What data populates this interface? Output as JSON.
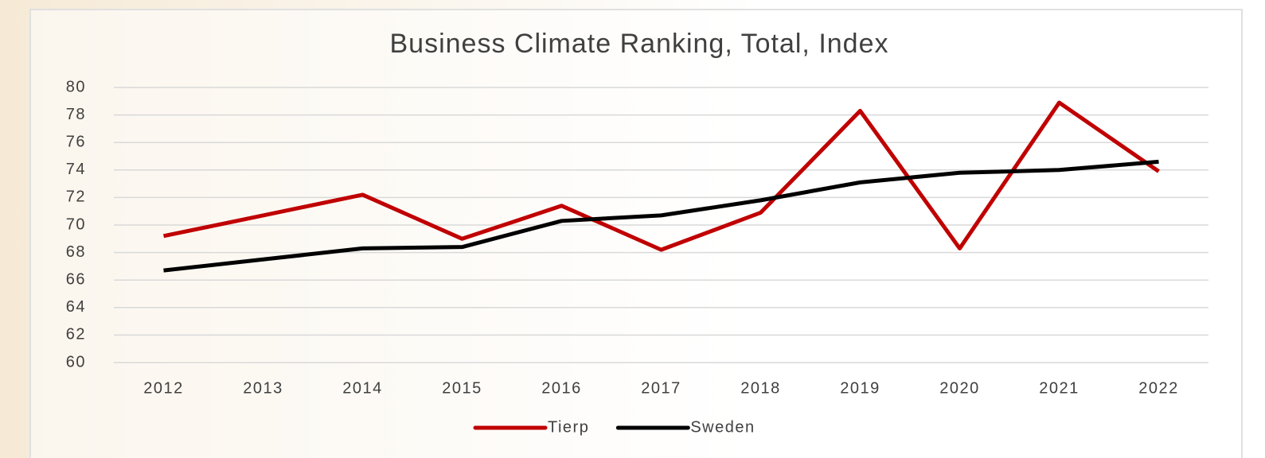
{
  "chart_data": {
    "type": "line",
    "title": "Business Climate Ranking, Total, Index",
    "categories": [
      "2012",
      "2013",
      "2014",
      "2015",
      "2016",
      "2017",
      "2018",
      "2019",
      "2020",
      "2021",
      "2022"
    ],
    "series": [
      {
        "name": "Tierp",
        "color": "#c00000",
        "values": [
          69.2,
          70.7,
          72.2,
          69.0,
          71.4,
          68.2,
          70.9,
          78.3,
          68.3,
          78.9,
          73.9
        ]
      },
      {
        "name": "Sweden",
        "color": "#000000",
        "values": [
          66.7,
          67.5,
          68.3,
          68.4,
          70.3,
          70.7,
          71.8,
          73.1,
          73.8,
          74.0,
          74.6
        ]
      }
    ],
    "ylim": [
      60,
      80
    ],
    "yticks": [
      60,
      62,
      64,
      66,
      68,
      70,
      72,
      74,
      76,
      78,
      80
    ],
    "grid": true,
    "legend": "bottom"
  }
}
